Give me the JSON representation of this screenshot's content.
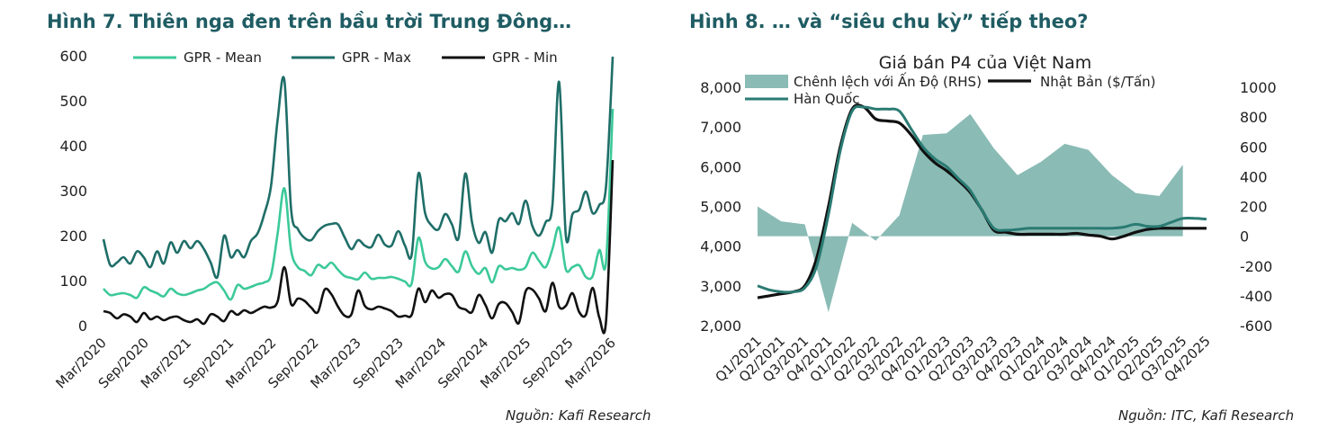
{
  "figures": {
    "left_title": "Hình 7.  Thiên nga đen trên bầu trời Trung Đông…",
    "right_title": "Hình 8.  …  và “siêu chu kỳ” tiếp theo?",
    "left_source": "Nguồn: Kafi Research",
    "right_source": "Nguồn: ITC, Kafi Research"
  },
  "colors": {
    "title": "#1f5c63",
    "gpr_mean": "#3cc99a",
    "gpr_max": "#1f6e68",
    "gpr_min": "#111111",
    "spread_area": "#8abbb5",
    "japan": "#111111",
    "korea": "#2a7b73"
  },
  "chart_data": [
    {
      "type": "line",
      "title": "",
      "xlabel": "",
      "ylabel": "",
      "ylim": [
        0,
        600
      ],
      "yticks": [
        "0",
        "100",
        "200",
        "300",
        "400",
        "500",
        "600"
      ],
      "xtick_labels": [
        "Mar/2020",
        "Sep/2020",
        "Mar/2021",
        "Sep/2021",
        "Mar/2022",
        "Sep/2022",
        "Mar/2023",
        "Sep/2023",
        "Mar/2024",
        "Sep/2024",
        "Mar/2025",
        "Sep/2025",
        "Mar/2026"
      ],
      "x_start": "Mar/2020",
      "x_end": "Mar/2026",
      "legend_position": "top",
      "grid": false,
      "series": [
        {
          "name": "GPR - Mean",
          "values": [
            82,
            68,
            70,
            72,
            68,
            62,
            85,
            78,
            72,
            65,
            82,
            72,
            68,
            72,
            78,
            82,
            92,
            96,
            78,
            58,
            90,
            82,
            86,
            92,
            96,
            112,
            205,
            305,
            168,
            130,
            122,
            112,
            135,
            128,
            140,
            124,
            110,
            106,
            103,
            118,
            104,
            106,
            106,
            108,
            104,
            98,
            94,
            195,
            142,
            127,
            130,
            148,
            132,
            120,
            165,
            132,
            115,
            128,
            96,
            132,
            125,
            128,
            124,
            130,
            162,
            144,
            130,
            170,
            218,
            125,
            130,
            134,
            108,
            110,
            168,
            142,
            482
          ]
        },
        {
          "name": "GPR - Max",
          "values": [
            192,
            135,
            140,
            152,
            138,
            165,
            152,
            130,
            165,
            138,
            185,
            162,
            188,
            172,
            188,
            170,
            140,
            108,
            200,
            152,
            168,
            152,
            188,
            205,
            248,
            310,
            458,
            545,
            260,
            215,
            195,
            190,
            210,
            222,
            226,
            225,
            196,
            170,
            190,
            178,
            175,
            202,
            180,
            178,
            210,
            178,
            158,
            338,
            250,
            222,
            214,
            248,
            225,
            195,
            338,
            230,
            184,
            208,
            162,
            235,
            232,
            250,
            226,
            278,
            222,
            200,
            230,
            268,
            542,
            200,
            248,
            258,
            298,
            250,
            268,
            310,
            598
          ]
        },
        {
          "name": "GPR - Min",
          "values": [
            32,
            28,
            16,
            25,
            20,
            8,
            28,
            14,
            20,
            12,
            18,
            20,
            12,
            8,
            14,
            4,
            25,
            20,
            10,
            32,
            24,
            34,
            28,
            35,
            42,
            40,
            54,
            130,
            48,
            60,
            55,
            40,
            30,
            80,
            70,
            42,
            22,
            25,
            78,
            44,
            36,
            42,
            38,
            32,
            20,
            22,
            24,
            82,
            52,
            78,
            62,
            70,
            68,
            42,
            36,
            30,
            68,
            46,
            16,
            48,
            50,
            30,
            6,
            76,
            80,
            60,
            32,
            95,
            42,
            44,
            72,
            30,
            24,
            84,
            18,
            10,
            368
          ]
        }
      ]
    },
    {
      "type": "line",
      "title": "Giá bán P4 của Việt Nam",
      "xlabel": "",
      "ylabel": "",
      "ylim": [
        2000,
        8000
      ],
      "yticks": [
        "2,000",
        "3,000",
        "4,000",
        "5,000",
        "6,000",
        "7,000",
        "8,000"
      ],
      "y2lim": [
        -600,
        1000
      ],
      "y2ticks": [
        "1000",
        "800",
        "600",
        "400",
        "200",
        "0",
        "-200",
        "-400",
        "-600"
      ],
      "categories": [
        "Q1/2021",
        "Q2/2021",
        "Q3/2021",
        "Q4/2021",
        "Q1/2022",
        "Q2/2022",
        "Q3/2022",
        "Q4/2022",
        "Q1/2023",
        "Q2/2023",
        "Q3/2023",
        "Q4/2023",
        "Q1/2024",
        "Q2/2024",
        "Q3/2024",
        "Q4/2024",
        "Q1/2025",
        "Q2/2025",
        "Q3/2025",
        "Q4/2025"
      ],
      "legend_position": "top",
      "grid": false,
      "area_series": {
        "name": "Chênh lệch với Ấn Độ (RHS)",
        "axis": "right",
        "x": [
          0,
          1,
          2,
          3,
          4,
          5,
          6,
          7,
          8,
          9,
          10,
          11,
          12,
          13,
          14,
          15,
          16,
          17,
          18
        ],
        "values": [
          200,
          100,
          80,
          -510,
          90,
          -30,
          140,
          680,
          690,
          820,
          590,
          410,
          500,
          620,
          580,
          410,
          290,
          270,
          480
        ]
      },
      "series": [
        {
          "name": "Nhật Bản ($/Tấn)",
          "axis": "left",
          "x": [
            0,
            0.5,
            1,
            1.5,
            2,
            2.5,
            3,
            3.5,
            4,
            4.5,
            5,
            5.5,
            6,
            6.5,
            7,
            7.5,
            8,
            8.5,
            9,
            9.5,
            10,
            10.5,
            11,
            11.5,
            12,
            12.5,
            13,
            13.5,
            14,
            14.5,
            15,
            15.5,
            16,
            16.5,
            17,
            17.5,
            18,
            18.5,
            19
          ],
          "values": [
            2700,
            2750,
            2800,
            2850,
            3000,
            3700,
            5000,
            6500,
            7450,
            7500,
            7200,
            7150,
            7100,
            6800,
            6400,
            6100,
            5900,
            5650,
            5350,
            4900,
            4400,
            4350,
            4300,
            4300,
            4300,
            4300,
            4300,
            4320,
            4280,
            4250,
            4180,
            4250,
            4350,
            4420,
            4450,
            4450,
            4450,
            4450,
            4450
          ]
        },
        {
          "name": "Hàn Quốc",
          "axis": "left",
          "x": [
            0,
            0.5,
            1,
            1.5,
            2,
            2.5,
            3,
            3.5,
            4,
            4.5,
            5,
            5.5,
            6,
            6.5,
            7,
            7.5,
            8,
            8.5,
            9,
            9.5,
            10,
            10.5,
            11,
            11.5,
            12,
            12.5,
            13,
            13.5,
            14,
            14.5,
            15,
            15.5,
            16,
            16.5,
            17,
            17.5,
            18,
            18.5,
            19
          ],
          "values": [
            3000,
            2900,
            2850,
            2850,
            2950,
            3500,
            4800,
            6400,
            7400,
            7500,
            7450,
            7450,
            7400,
            6950,
            6500,
            6200,
            6000,
            5700,
            5400,
            4900,
            4450,
            4400,
            4420,
            4450,
            4450,
            4450,
            4450,
            4450,
            4450,
            4450,
            4450,
            4480,
            4550,
            4500,
            4500,
            4600,
            4700,
            4700,
            4680
          ]
        }
      ]
    }
  ]
}
